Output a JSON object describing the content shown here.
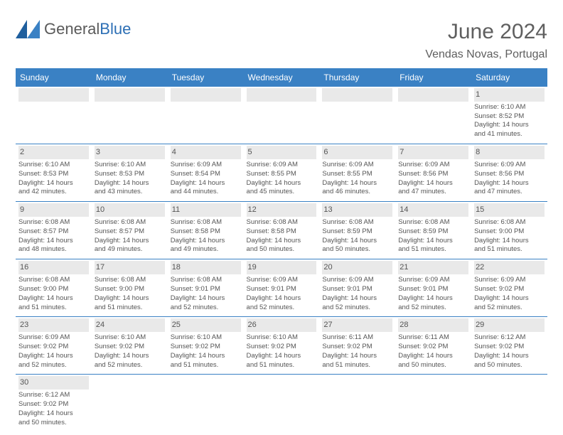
{
  "brand": {
    "name_part1": "General",
    "name_part2": "Blue"
  },
  "title": "June 2024",
  "location": "Vendas Novas, Portugal",
  "colors": {
    "header_bg": "#3a81c4",
    "header_text": "#ffffff",
    "daynum_bg": "#e9e9e9",
    "row_border": "#3a81c4",
    "body_text": "#555555",
    "title_text": "#5f5f5f"
  },
  "fonts": {
    "title_size": 30,
    "location_size": 16,
    "weekday_size": 12,
    "cell_size": 9.5
  },
  "weekdays": [
    "Sunday",
    "Monday",
    "Tuesday",
    "Wednesday",
    "Thursday",
    "Friday",
    "Saturday"
  ],
  "weeks": [
    [
      null,
      null,
      null,
      null,
      null,
      null,
      {
        "day": "1",
        "sunrise": "Sunrise: 6:10 AM",
        "sunset": "Sunset: 8:52 PM",
        "daylight1": "Daylight: 14 hours",
        "daylight2": "and 41 minutes."
      }
    ],
    [
      {
        "day": "2",
        "sunrise": "Sunrise: 6:10 AM",
        "sunset": "Sunset: 8:53 PM",
        "daylight1": "Daylight: 14 hours",
        "daylight2": "and 42 minutes."
      },
      {
        "day": "3",
        "sunrise": "Sunrise: 6:10 AM",
        "sunset": "Sunset: 8:53 PM",
        "daylight1": "Daylight: 14 hours",
        "daylight2": "and 43 minutes."
      },
      {
        "day": "4",
        "sunrise": "Sunrise: 6:09 AM",
        "sunset": "Sunset: 8:54 PM",
        "daylight1": "Daylight: 14 hours",
        "daylight2": "and 44 minutes."
      },
      {
        "day": "5",
        "sunrise": "Sunrise: 6:09 AM",
        "sunset": "Sunset: 8:55 PM",
        "daylight1": "Daylight: 14 hours",
        "daylight2": "and 45 minutes."
      },
      {
        "day": "6",
        "sunrise": "Sunrise: 6:09 AM",
        "sunset": "Sunset: 8:55 PM",
        "daylight1": "Daylight: 14 hours",
        "daylight2": "and 46 minutes."
      },
      {
        "day": "7",
        "sunrise": "Sunrise: 6:09 AM",
        "sunset": "Sunset: 8:56 PM",
        "daylight1": "Daylight: 14 hours",
        "daylight2": "and 47 minutes."
      },
      {
        "day": "8",
        "sunrise": "Sunrise: 6:09 AM",
        "sunset": "Sunset: 8:56 PM",
        "daylight1": "Daylight: 14 hours",
        "daylight2": "and 47 minutes."
      }
    ],
    [
      {
        "day": "9",
        "sunrise": "Sunrise: 6:08 AM",
        "sunset": "Sunset: 8:57 PM",
        "daylight1": "Daylight: 14 hours",
        "daylight2": "and 48 minutes."
      },
      {
        "day": "10",
        "sunrise": "Sunrise: 6:08 AM",
        "sunset": "Sunset: 8:57 PM",
        "daylight1": "Daylight: 14 hours",
        "daylight2": "and 49 minutes."
      },
      {
        "day": "11",
        "sunrise": "Sunrise: 6:08 AM",
        "sunset": "Sunset: 8:58 PM",
        "daylight1": "Daylight: 14 hours",
        "daylight2": "and 49 minutes."
      },
      {
        "day": "12",
        "sunrise": "Sunrise: 6:08 AM",
        "sunset": "Sunset: 8:58 PM",
        "daylight1": "Daylight: 14 hours",
        "daylight2": "and 50 minutes."
      },
      {
        "day": "13",
        "sunrise": "Sunrise: 6:08 AM",
        "sunset": "Sunset: 8:59 PM",
        "daylight1": "Daylight: 14 hours",
        "daylight2": "and 50 minutes."
      },
      {
        "day": "14",
        "sunrise": "Sunrise: 6:08 AM",
        "sunset": "Sunset: 8:59 PM",
        "daylight1": "Daylight: 14 hours",
        "daylight2": "and 51 minutes."
      },
      {
        "day": "15",
        "sunrise": "Sunrise: 6:08 AM",
        "sunset": "Sunset: 9:00 PM",
        "daylight1": "Daylight: 14 hours",
        "daylight2": "and 51 minutes."
      }
    ],
    [
      {
        "day": "16",
        "sunrise": "Sunrise: 6:08 AM",
        "sunset": "Sunset: 9:00 PM",
        "daylight1": "Daylight: 14 hours",
        "daylight2": "and 51 minutes."
      },
      {
        "day": "17",
        "sunrise": "Sunrise: 6:08 AM",
        "sunset": "Sunset: 9:00 PM",
        "daylight1": "Daylight: 14 hours",
        "daylight2": "and 51 minutes."
      },
      {
        "day": "18",
        "sunrise": "Sunrise: 6:08 AM",
        "sunset": "Sunset: 9:01 PM",
        "daylight1": "Daylight: 14 hours",
        "daylight2": "and 52 minutes."
      },
      {
        "day": "19",
        "sunrise": "Sunrise: 6:09 AM",
        "sunset": "Sunset: 9:01 PM",
        "daylight1": "Daylight: 14 hours",
        "daylight2": "and 52 minutes."
      },
      {
        "day": "20",
        "sunrise": "Sunrise: 6:09 AM",
        "sunset": "Sunset: 9:01 PM",
        "daylight1": "Daylight: 14 hours",
        "daylight2": "and 52 minutes."
      },
      {
        "day": "21",
        "sunrise": "Sunrise: 6:09 AM",
        "sunset": "Sunset: 9:01 PM",
        "daylight1": "Daylight: 14 hours",
        "daylight2": "and 52 minutes."
      },
      {
        "day": "22",
        "sunrise": "Sunrise: 6:09 AM",
        "sunset": "Sunset: 9:02 PM",
        "daylight1": "Daylight: 14 hours",
        "daylight2": "and 52 minutes."
      }
    ],
    [
      {
        "day": "23",
        "sunrise": "Sunrise: 6:09 AM",
        "sunset": "Sunset: 9:02 PM",
        "daylight1": "Daylight: 14 hours",
        "daylight2": "and 52 minutes."
      },
      {
        "day": "24",
        "sunrise": "Sunrise: 6:10 AM",
        "sunset": "Sunset: 9:02 PM",
        "daylight1": "Daylight: 14 hours",
        "daylight2": "and 52 minutes."
      },
      {
        "day": "25",
        "sunrise": "Sunrise: 6:10 AM",
        "sunset": "Sunset: 9:02 PM",
        "daylight1": "Daylight: 14 hours",
        "daylight2": "and 51 minutes."
      },
      {
        "day": "26",
        "sunrise": "Sunrise: 6:10 AM",
        "sunset": "Sunset: 9:02 PM",
        "daylight1": "Daylight: 14 hours",
        "daylight2": "and 51 minutes."
      },
      {
        "day": "27",
        "sunrise": "Sunrise: 6:11 AM",
        "sunset": "Sunset: 9:02 PM",
        "daylight1": "Daylight: 14 hours",
        "daylight2": "and 51 minutes."
      },
      {
        "day": "28",
        "sunrise": "Sunrise: 6:11 AM",
        "sunset": "Sunset: 9:02 PM",
        "daylight1": "Daylight: 14 hours",
        "daylight2": "and 50 minutes."
      },
      {
        "day": "29",
        "sunrise": "Sunrise: 6:12 AM",
        "sunset": "Sunset: 9:02 PM",
        "daylight1": "Daylight: 14 hours",
        "daylight2": "and 50 minutes."
      }
    ],
    [
      {
        "day": "30",
        "sunrise": "Sunrise: 6:12 AM",
        "sunset": "Sunset: 9:02 PM",
        "daylight1": "Daylight: 14 hours",
        "daylight2": "and 50 minutes."
      },
      null,
      null,
      null,
      null,
      null,
      null
    ]
  ]
}
